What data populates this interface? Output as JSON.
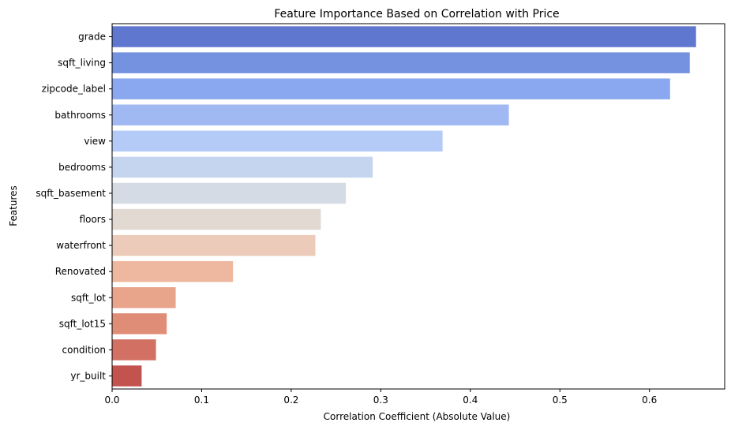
{
  "chart_data": {
    "type": "bar",
    "orientation": "horizontal",
    "title": "Feature Importance Based on Correlation with Price",
    "xlabel": "Correlation Coefficient (Absolute Value)",
    "ylabel": "Features",
    "xlim": [
      0,
      0.684
    ],
    "xticks": [
      0.0,
      0.1,
      0.2,
      0.3,
      0.4,
      0.5,
      0.6
    ],
    "xtick_labels": [
      "0.0",
      "0.1",
      "0.2",
      "0.3",
      "0.4",
      "0.5",
      "0.6"
    ],
    "grid": false,
    "legend": "none",
    "palette": "coolwarm",
    "categories": [
      "grade",
      "sqft_living",
      "zipcode_label",
      "bathrooms",
      "view",
      "bedrooms",
      "sqft_basement",
      "floors",
      "waterfront",
      "Renovated",
      "sqft_lot",
      "sqft_lot15",
      "condition",
      "yr_built"
    ],
    "values": [
      0.652,
      0.645,
      0.623,
      0.443,
      0.369,
      0.291,
      0.261,
      0.233,
      0.227,
      0.135,
      0.071,
      0.061,
      0.049,
      0.033
    ],
    "colors": [
      "#6077d0",
      "#7592e0",
      "#8aa8ef",
      "#a0b9f3",
      "#b4cbf7",
      "#c6d5ef",
      "#d5dbe5",
      "#e2d9d3",
      "#eccbbb",
      "#eeb79f",
      "#e9a48c",
      "#e08d77",
      "#d27064",
      "#c3534f"
    ]
  }
}
